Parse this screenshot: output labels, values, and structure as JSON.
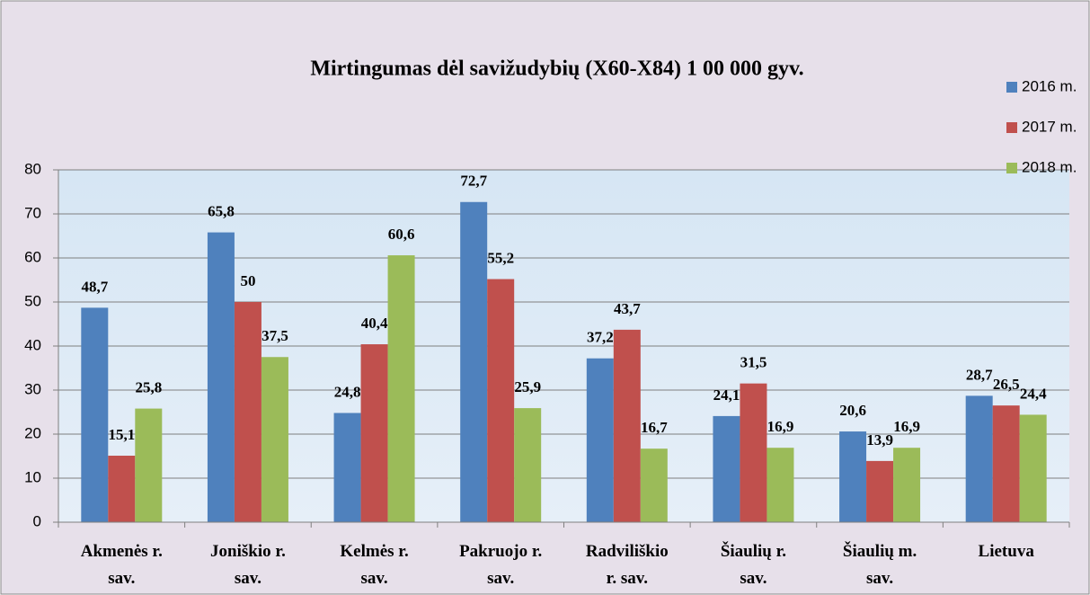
{
  "chart_data": {
    "type": "bar",
    "title": "Mirtingumas dėl savižudybių (X60-X84) 1 00 000 gyv.",
    "categories": [
      "Akmenės r.\nsav.",
      "Joniškio r.\nsav.",
      "Kelmės r.\nsav.",
      "Pakruojo r.\nsav.",
      "Radviliškio\nr. sav.",
      "Šiaulių r.\nsav.",
      "Šiaulių m.\nsav.",
      "Lietuva"
    ],
    "series": [
      {
        "name": "2016 m.",
        "color": "#4f81bd",
        "values": [
          48.7,
          65.8,
          24.8,
          72.7,
          37.2,
          24.1,
          20.6,
          28.7
        ],
        "value_labels": [
          "48,7",
          "65,8",
          "24,8",
          "72,7",
          "37,2",
          "24,1",
          "20,6",
          "28,7"
        ]
      },
      {
        "name": "2017 m.",
        "color": "#c0504d",
        "values": [
          15.1,
          50,
          40.4,
          55.2,
          43.7,
          31.5,
          13.9,
          26.5
        ],
        "value_labels": [
          "15,1",
          "50",
          "40,4",
          "55,2",
          "43,7",
          "31,5",
          "13,9",
          "26,5"
        ]
      },
      {
        "name": "2018 m.",
        "color": "#9bbb59",
        "values": [
          25.8,
          37.5,
          60.6,
          25.9,
          16.7,
          16.9,
          16.9,
          24.4
        ],
        "value_labels": [
          "25,8",
          "37,5",
          "60,6",
          "25,9",
          "16,7",
          "16,9",
          "16,9",
          "24,4"
        ]
      }
    ],
    "ylim": [
      0,
      80
    ],
    "yticks": [
      0,
      10,
      20,
      30,
      40,
      50,
      60,
      70,
      80
    ],
    "grid": true,
    "legend": "top-right"
  }
}
